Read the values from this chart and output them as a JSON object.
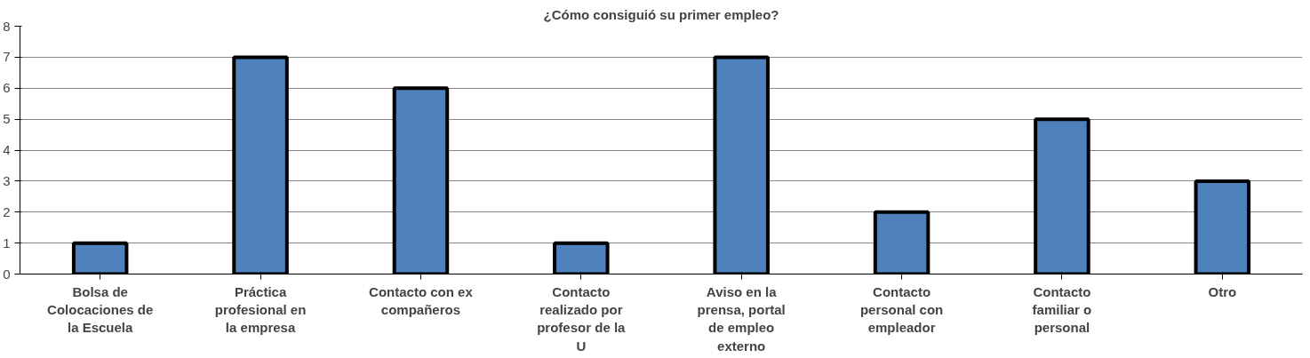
{
  "chart_data": {
    "type": "bar",
    "title": "¿Cómo consiguió su primer empleo?",
    "categories": [
      "Bolsa de Colocaciones de la Escuela",
      "Práctica profesional en la empresa",
      "Contacto con ex compañeros",
      "Contacto realizado por profesor de la U",
      "Aviso en la prensa, portal de empleo externo",
      "Contacto personal con empleador",
      "Contacto familiar o personal",
      "Otro"
    ],
    "values": [
      1,
      7,
      6,
      1,
      7,
      2,
      5,
      3
    ],
    "color": "#4f81bd",
    "ylim": [
      0,
      8
    ],
    "yticks": [
      0,
      1,
      2,
      3,
      4,
      5,
      6,
      7,
      8
    ],
    "grid": "y"
  }
}
